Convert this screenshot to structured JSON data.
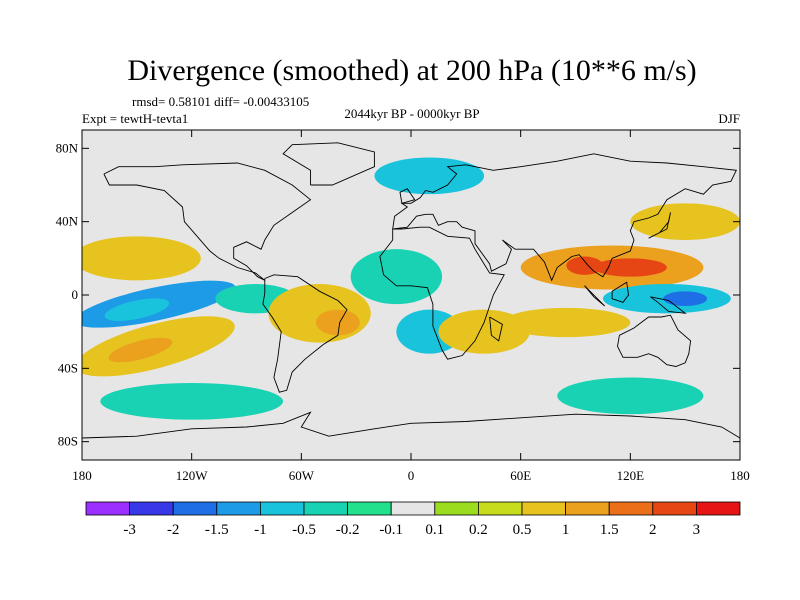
{
  "chart_data": {
    "type": "heatmap",
    "title": "Divergence (smoothed) at 200 hPa (10**6 m/s)",
    "stats_text": "rmsd= 0.58101 diff= -0.00433105",
    "left_label": "Expt = tewtH-tevta1",
    "center_label": "2044kyr BP - 0000kyr BP",
    "right_label": "DJF",
    "x_range": [
      -180,
      180
    ],
    "y_range": [
      -90,
      90
    ],
    "x_ticks": [
      {
        "value": -180,
        "label": "180"
      },
      {
        "value": -120,
        "label": "120W"
      },
      {
        "value": -60,
        "label": "60W"
      },
      {
        "value": 0,
        "label": "0"
      },
      {
        "value": 60,
        "label": "60E"
      },
      {
        "value": 120,
        "label": "120E"
      },
      {
        "value": 180,
        "label": "180"
      }
    ],
    "y_ticks": [
      {
        "value": 80,
        "label": "80N"
      },
      {
        "value": 40,
        "label": "40N"
      },
      {
        "value": 0,
        "label": "0"
      },
      {
        "value": -40,
        "label": "40S"
      },
      {
        "value": -80,
        "label": "80S"
      }
    ],
    "colorbar": {
      "labels": [
        "-3",
        "-2",
        "-1.5",
        "-1",
        "-0.5",
        "-0.2",
        "-0.1",
        "0.1",
        "0.2",
        "0.5",
        "1",
        "1.5",
        "2",
        "3"
      ],
      "colors": [
        "#9b30ff",
        "#3838e8",
        "#1e6ee6",
        "#1e9be6",
        "#19c3dc",
        "#19d2b4",
        "#23e08c",
        "#e6e6e6",
        "#9bdc1e",
        "#c8dc1e",
        "#e6c31e",
        "#eba01e",
        "#eb6e19",
        "#e64614",
        "#e61414"
      ]
    },
    "background_color": "#e6e6e6",
    "blobs": [
      {
        "lon": -140,
        "lat": -5,
        "rlon": 45,
        "rlat": 9,
        "rot": -12,
        "v": 3
      },
      {
        "lon": -150,
        "lat": -8,
        "rlon": 18,
        "rlat": 5,
        "rot": -12,
        "v": 4
      },
      {
        "lon": -140,
        "lat": -28,
        "rlon": 45,
        "rlat": 12,
        "rot": -15,
        "v": 10
      },
      {
        "lon": -148,
        "lat": -30,
        "rlon": 18,
        "rlat": 5,
        "rot": -15,
        "v": 11
      },
      {
        "lon": -150,
        "lat": 20,
        "rlon": 35,
        "rlat": 12,
        "rot": 0,
        "v": 10
      },
      {
        "lon": -85,
        "lat": -2,
        "rlon": 22,
        "rlat": 8,
        "rot": 0,
        "v": 5
      },
      {
        "lon": -50,
        "lat": -10,
        "rlon": 28,
        "rlat": 16,
        "rot": 0,
        "v": 10
      },
      {
        "lon": -40,
        "lat": -15,
        "rlon": 12,
        "rlat": 7,
        "rot": 0,
        "v": 11
      },
      {
        "lon": -8,
        "lat": 10,
        "rlon": 25,
        "rlat": 15,
        "rot": 0,
        "v": 5
      },
      {
        "lon": 10,
        "lat": -20,
        "rlon": 18,
        "rlat": 12,
        "rot": 0,
        "v": 4
      },
      {
        "lon": 40,
        "lat": -20,
        "rlon": 25,
        "rlat": 12,
        "rot": 0,
        "v": 10
      },
      {
        "lon": 110,
        "lat": 15,
        "rlon": 50,
        "rlat": 12,
        "rot": 0,
        "v": 11
      },
      {
        "lon": 120,
        "lat": 15,
        "rlon": 20,
        "rlat": 5,
        "rot": 0,
        "v": 13
      },
      {
        "lon": 95,
        "lat": 16,
        "rlon": 10,
        "rlat": 5,
        "rot": 0,
        "v": 13
      },
      {
        "lon": 140,
        "lat": -2,
        "rlon": 35,
        "rlat": 8,
        "rot": 0,
        "v": 4
      },
      {
        "lon": 150,
        "lat": -2,
        "rlon": 12,
        "rlat": 4,
        "rot": 0,
        "v": 2
      },
      {
        "lon": 85,
        "lat": -15,
        "rlon": 35,
        "rlat": 8,
        "rot": 0,
        "v": 10
      },
      {
        "lon": 10,
        "lat": 65,
        "rlon": 30,
        "rlat": 10,
        "rot": 0,
        "v": 4
      },
      {
        "lon": 150,
        "lat": 40,
        "rlon": 30,
        "rlat": 10,
        "rot": 0,
        "v": 10
      },
      {
        "lon": -120,
        "lat": -58,
        "rlon": 50,
        "rlat": 10,
        "rot": 0,
        "v": 5
      },
      {
        "lon": 120,
        "lat": -55,
        "rlon": 40,
        "rlat": 10,
        "rot": 0,
        "v": 5
      }
    ]
  }
}
